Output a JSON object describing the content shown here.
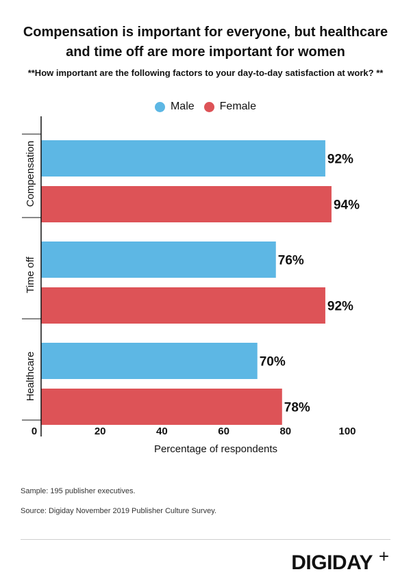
{
  "header": {
    "title_line1": "Compensation is important for everyone, but healthcare",
    "title_line2": "and time off are more important for women",
    "subtitle": "**How important are the following factors to your day-to-day satisfaction at work? **"
  },
  "legend": {
    "male_label": "Male",
    "female_label": "Female"
  },
  "colors": {
    "male": "#5DB7E4",
    "female": "#DD5357"
  },
  "chart_data": {
    "type": "bar",
    "orientation": "horizontal",
    "categories": [
      "Compensation",
      "Time off",
      "Healthcare"
    ],
    "series": [
      {
        "name": "Male",
        "values": [
          92,
          76,
          70
        ],
        "labels": [
          "92%",
          "76%",
          "70%"
        ]
      },
      {
        "name": "Female",
        "values": [
          94,
          92,
          78
        ],
        "labels": [
          "94%",
          "92%",
          "78%"
        ]
      }
    ],
    "xlabel": "Percentage of respondents",
    "xlim": [
      0,
      100
    ],
    "xticks": [
      0,
      20,
      40,
      60,
      80,
      100
    ],
    "xtick_labels": [
      "0",
      "20",
      "40",
      "60",
      "80",
      "100"
    ],
    "legend_position": "top-center"
  },
  "footer": {
    "sample": "Sample: 195 publisher executives.",
    "source": "Source: Digiday November 2019 Publisher Culture Survey.",
    "logo_text": "DIGIDAY",
    "logo_plus": "+"
  }
}
